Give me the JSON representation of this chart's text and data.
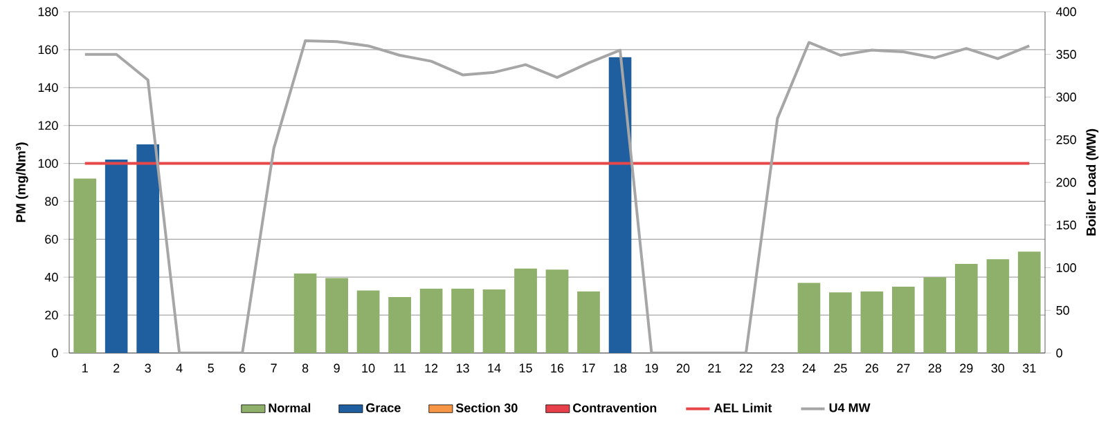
{
  "chart_data": {
    "type": "bar",
    "ylabel": "PM (mg/Nm³)",
    "y2label": "Boiler Load (MW)",
    "categories": [
      "1",
      "2",
      "3",
      "4",
      "5",
      "6",
      "7",
      "8",
      "9",
      "10",
      "11",
      "12",
      "13",
      "14",
      "15",
      "16",
      "17",
      "18",
      "19",
      "20",
      "21",
      "22",
      "23",
      "24",
      "25",
      "26",
      "27",
      "28",
      "29",
      "30",
      "31"
    ],
    "series": [
      {
        "name": "Normal",
        "color": "#8fb06a",
        "values": [
          92,
          null,
          null,
          null,
          null,
          null,
          null,
          42,
          39.5,
          33,
          29.5,
          34,
          34,
          33.5,
          44.5,
          44,
          32.5,
          null,
          null,
          null,
          null,
          null,
          null,
          37,
          32,
          32.5,
          35,
          40,
          47,
          49.5,
          53.5
        ]
      },
      {
        "name": "Grace",
        "color": "#1f5fa0",
        "values": [
          null,
          102,
          110,
          null,
          null,
          null,
          null,
          null,
          null,
          null,
          null,
          null,
          null,
          null,
          null,
          null,
          null,
          156,
          null,
          null,
          null,
          null,
          null,
          null,
          null,
          null,
          null,
          null,
          null,
          null,
          null
        ]
      },
      {
        "name": "Section 30",
        "color": "#f79646",
        "values": [
          null,
          null,
          null,
          null,
          null,
          null,
          null,
          null,
          null,
          null,
          null,
          null,
          null,
          null,
          null,
          null,
          null,
          null,
          null,
          null,
          null,
          null,
          null,
          null,
          null,
          null,
          null,
          null,
          null,
          null,
          null
        ]
      },
      {
        "name": "Contravention",
        "color": "#e8404a",
        "values": [
          null,
          null,
          null,
          null,
          null,
          null,
          null,
          null,
          null,
          null,
          null,
          null,
          null,
          null,
          null,
          null,
          null,
          null,
          null,
          null,
          null,
          null,
          null,
          null,
          null,
          null,
          null,
          null,
          null,
          null,
          null
        ]
      },
      {
        "name": "AEL Limit",
        "type": "line",
        "color": "#e8474a",
        "values": [
          100,
          100,
          100,
          100,
          100,
          100,
          100,
          100,
          100,
          100,
          100,
          100,
          100,
          100,
          100,
          100,
          100,
          100,
          100,
          100,
          100,
          100,
          100,
          100,
          100,
          100,
          100,
          100,
          100,
          100,
          100
        ]
      },
      {
        "name": "U4 MW",
        "type": "line",
        "axis": "y2",
        "color": "#a6a6a6",
        "values": [
          350,
          350,
          320,
          0,
          0,
          0,
          240,
          366,
          365,
          360,
          349,
          342,
          326,
          329,
          338,
          323,
          340,
          355,
          0,
          0,
          0,
          0,
          275,
          364,
          349,
          355,
          353,
          346,
          357,
          345,
          360
        ]
      }
    ],
    "ylim": [
      0,
      180
    ],
    "yticks": [
      0,
      20,
      40,
      60,
      80,
      100,
      120,
      140,
      160,
      180
    ],
    "y2lim": [
      0,
      400
    ],
    "y2ticks": [
      0,
      50,
      100,
      150,
      200,
      250,
      300,
      350,
      400
    ],
    "grid": "y",
    "legend": "bottom"
  }
}
